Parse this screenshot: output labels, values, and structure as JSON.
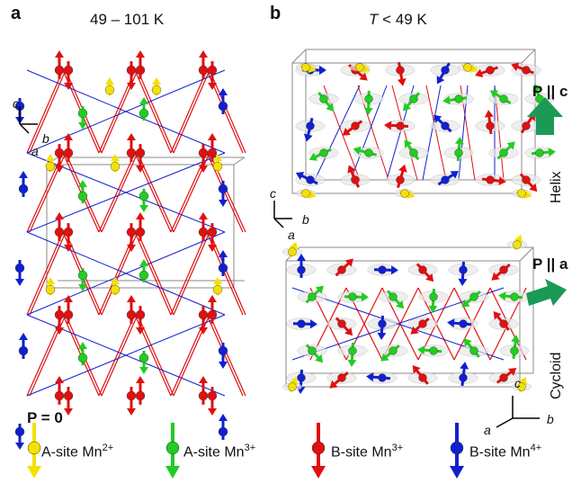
{
  "panel_a": {
    "letter": "a",
    "temperature": "49 – 101 K",
    "polarization": "P = 0",
    "axes": {
      "c": "c",
      "b": "b",
      "a": "a"
    }
  },
  "panel_b": {
    "letter": "b",
    "temperature_prefix": "T",
    "temperature_rest": " < 49 K",
    "helix": {
      "label": "Helix",
      "polarization": "P || c",
      "axes": {
        "c": "c",
        "b": "b",
        "a": "a"
      }
    },
    "cycloid": {
      "label": "Cycloid",
      "polarization": "P || a",
      "axes": {
        "c": "c",
        "b": "b",
        "a": "a"
      }
    }
  },
  "legend": [
    {
      "name": "A-site Mn",
      "sup": "2+",
      "color": "#f5e100"
    },
    {
      "name": "A-site Mn",
      "sup": "3+",
      "color": "#22cc22"
    },
    {
      "name": "B-site Mn",
      "sup": "3+",
      "color": "#e01010"
    },
    {
      "name": "B-site Mn",
      "sup": "4+",
      "color": "#1020d0"
    }
  ],
  "colors": {
    "yellow": "#f5e100",
    "green": "#22cc22",
    "red": "#e01010",
    "blue": "#1020d0",
    "polar_arrow": "#1a9a55"
  }
}
